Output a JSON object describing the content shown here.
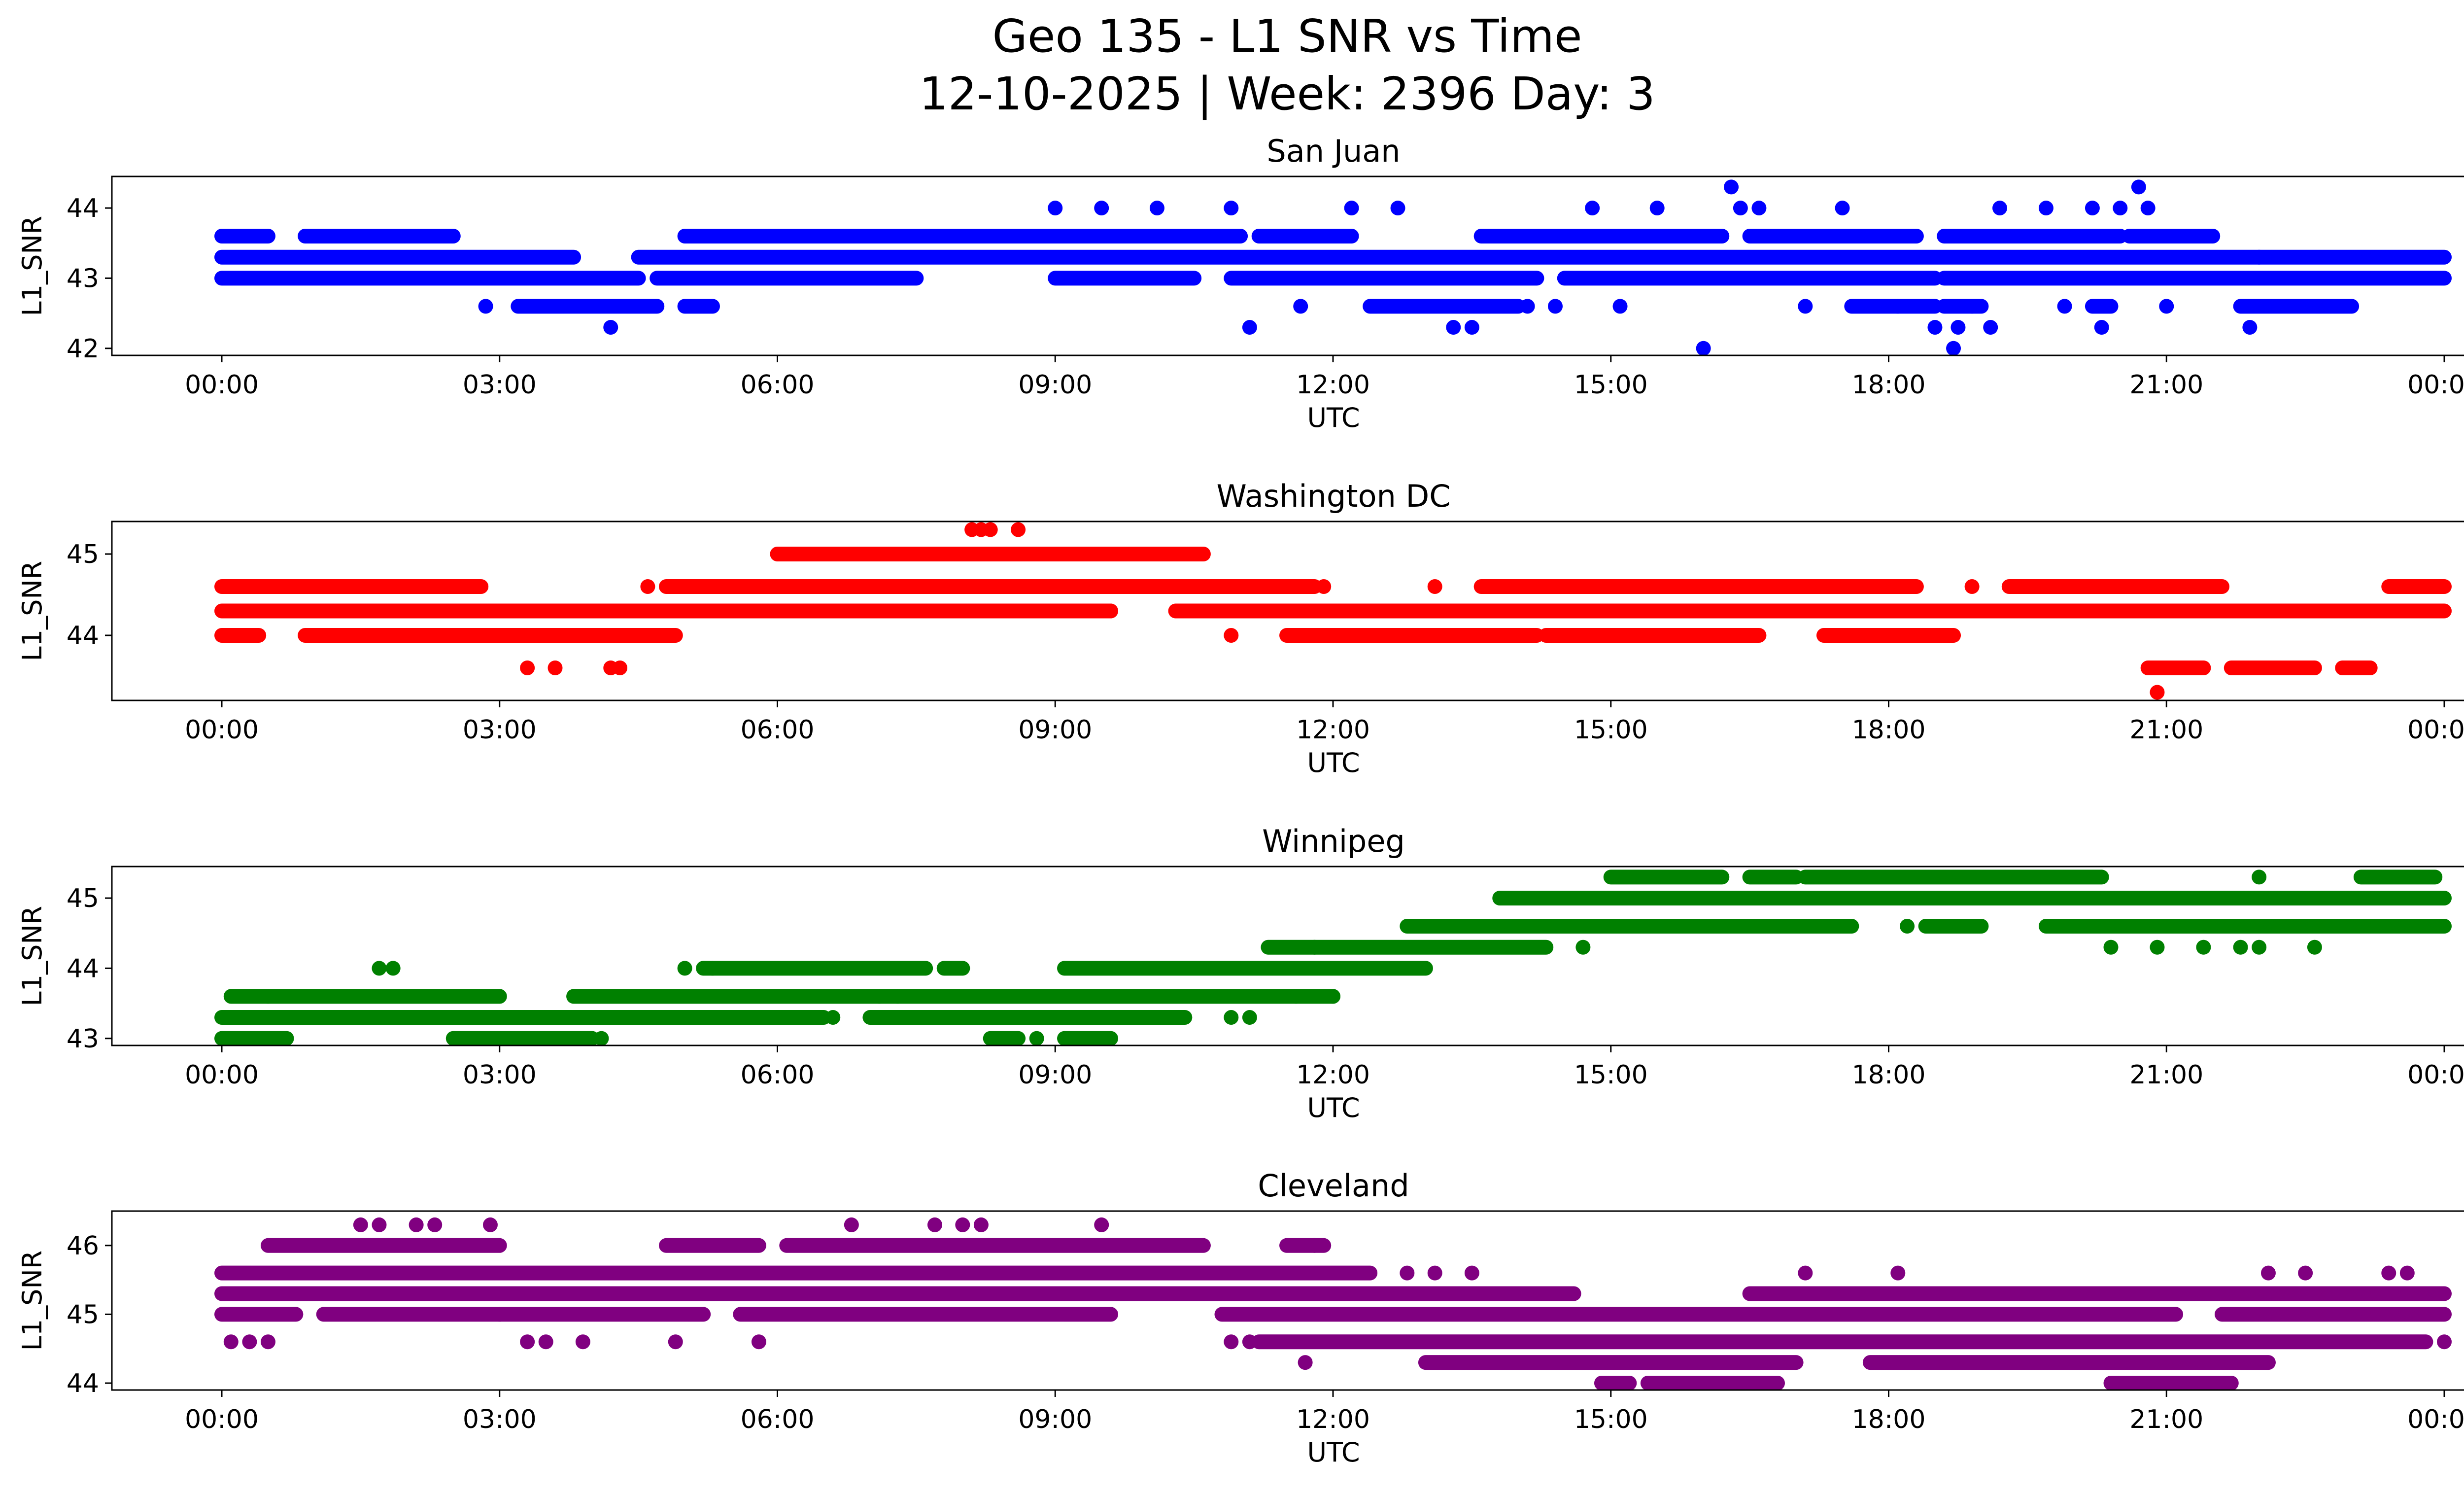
{
  "figure": {
    "title_line1": "Geo 135 - L1 SNR vs Time",
    "title_line2": "12-10-2025 | Week: 2396 Day: 3"
  },
  "chart_data": [
    {
      "type": "scatter",
      "title": "San Juan",
      "xlabel": "UTC",
      "ylabel": "L1_SNR",
      "color": "#0000ff",
      "xlim": [
        0,
        24
      ],
      "ylim": [
        41.9,
        44.45
      ],
      "x_ticks": [
        0,
        3,
        6,
        9,
        12,
        15,
        18,
        21,
        24
      ],
      "x_tick_labels": [
        "00:00",
        "03:00",
        "06:00",
        "09:00",
        "12:00",
        "15:00",
        "18:00",
        "21:00",
        "00:00"
      ],
      "y_ticks": [
        42,
        43,
        44
      ],
      "y_tick_labels": [
        "42",
        "43",
        "44"
      ],
      "bands": [
        {
          "y": 43.0,
          "segments": [
            [
              0,
              4.5
            ],
            [
              4.7,
              7.5
            ],
            [
              9.0,
              10.5
            ],
            [
              10.9,
              14.2
            ],
            [
              14.5,
              18.5
            ],
            [
              18.6,
              24
            ]
          ]
        },
        {
          "y": 43.3,
          "segments": [
            [
              0,
              3.8
            ],
            [
              4.5,
              24
            ]
          ]
        },
        {
          "y": 43.6,
          "segments": [
            [
              0,
              0.5
            ],
            [
              0.9,
              2.5
            ],
            [
              5.0,
              11.0
            ],
            [
              11.2,
              12.2
            ],
            [
              13.6,
              16.2
            ],
            [
              16.5,
              18.3
            ],
            [
              18.6,
              20.5
            ],
            [
              20.6,
              21.5
            ]
          ]
        },
        {
          "y": 42.6,
          "segments": [
            [
              3.2,
              4.7
            ],
            [
              5.0,
              5.3
            ],
            [
              12.4,
              14.0
            ],
            [
              17.6,
              18.5
            ],
            [
              18.6,
              19.0
            ],
            [
              20.2,
              20.4
            ],
            [
              21.8,
              23.0
            ]
          ]
        }
      ],
      "x": [
        2.85,
        4.2,
        9.0,
        9.5,
        10.1,
        10.9,
        11.1,
        11.65,
        12.2,
        12.7,
        13.3,
        13.5,
        14.1,
        14.4,
        14.8,
        15.1,
        15.5,
        16.0,
        16.3,
        16.4,
        16.6,
        17.1,
        17.5,
        18.1,
        18.5,
        18.7,
        18.75,
        18.9,
        19.1,
        19.2,
        19.7,
        19.9,
        20.2,
        20.3,
        20.5,
        20.7,
        20.8,
        21.0,
        21.9,
        22.0
      ],
      "y": [
        42.6,
        42.3,
        44.0,
        44.0,
        44.0,
        44.0,
        42.3,
        42.6,
        44.0,
        44.0,
        42.3,
        42.3,
        42.6,
        42.6,
        44.0,
        42.6,
        44.0,
        42.0,
        44.3,
        44.0,
        44.0,
        42.6,
        44.0,
        42.6,
        42.3,
        42.0,
        42.3,
        42.6,
        42.3,
        44.0,
        44.0,
        42.6,
        44.0,
        42.3,
        44.0,
        44.3,
        44.0,
        42.6,
        42.3,
        43.3
      ]
    },
    {
      "type": "scatter",
      "title": "Washington DC",
      "xlabel": "UTC",
      "ylabel": "L1_SNR",
      "color": "#ff0000",
      "xlim": [
        0,
        24
      ],
      "ylim": [
        43.2,
        45.4
      ],
      "x_ticks": [
        0,
        3,
        6,
        9,
        12,
        15,
        18,
        21,
        24
      ],
      "x_tick_labels": [
        "00:00",
        "03:00",
        "06:00",
        "09:00",
        "12:00",
        "15:00",
        "18:00",
        "21:00",
        "00:00"
      ],
      "y_ticks": [
        44,
        45
      ],
      "y_tick_labels": [
        "44",
        "45"
      ],
      "bands": [
        {
          "y": 44.3,
          "segments": [
            [
              0,
              6.2
            ],
            [
              6.2,
              9.6
            ],
            [
              10.3,
              24
            ]
          ]
        },
        {
          "y": 44.6,
          "segments": [
            [
              0,
              2.8
            ],
            [
              4.8,
              11.8
            ],
            [
              13.6,
              18.3
            ],
            [
              19.3,
              21.6
            ],
            [
              23.4,
              24
            ]
          ]
        },
        {
          "y": 44.0,
          "segments": [
            [
              0,
              0.4
            ],
            [
              0.9,
              1.6
            ],
            [
              1.6,
              4.9
            ],
            [
              11.5,
              14.2
            ],
            [
              14.3,
              16.6
            ],
            [
              17.3,
              18.7
            ]
          ]
        },
        {
          "y": 45.0,
          "segments": [
            [
              6.0,
              10.6
            ]
          ]
        },
        {
          "y": 43.6,
          "segments": [
            [
              20.8,
              21.4
            ],
            [
              21.7,
              22.6
            ],
            [
              22.9,
              23.2
            ]
          ]
        }
      ],
      "x": [
        3.3,
        3.6,
        4.2,
        4.3,
        4.6,
        6.9,
        8.1,
        8.2,
        8.3,
        8.6,
        8.25,
        8.7,
        8.9,
        9.6,
        10.9,
        11.9,
        13.1,
        18.9,
        20.9
      ],
      "y": [
        43.6,
        43.6,
        43.6,
        43.6,
        44.6,
        44.3,
        45.3,
        45.3,
        45.3,
        45.3,
        44.3,
        44.3,
        44.3,
        44.3,
        44.0,
        44.6,
        44.6,
        44.6,
        43.3
      ]
    },
    {
      "type": "scatter",
      "title": "Winnipeg",
      "xlabel": "UTC",
      "ylabel": "L1_SNR",
      "color": "#008000",
      "xlim": [
        0,
        24
      ],
      "ylim": [
        42.9,
        45.45
      ],
      "x_ticks": [
        0,
        3,
        6,
        9,
        12,
        15,
        18,
        21,
        24
      ],
      "x_tick_labels": [
        "00:00",
        "03:00",
        "06:00",
        "09:00",
        "12:00",
        "15:00",
        "18:00",
        "21:00",
        "00:00"
      ],
      "y_ticks": [
        43,
        44,
        45
      ],
      "y_tick_labels": [
        "43",
        "44",
        "45"
      ],
      "bands": [
        {
          "y": 43.3,
          "segments": [
            [
              0,
              4.0
            ],
            [
              4.0,
              6.5
            ],
            [
              7.0,
              10.4
            ]
          ]
        },
        {
          "y": 43.6,
          "segments": [
            [
              0.1,
              0.5
            ],
            [
              0.5,
              3.0
            ],
            [
              3.8,
              12.0
            ]
          ]
        },
        {
          "y": 43.0,
          "segments": [
            [
              0,
              0.7
            ],
            [
              2.5,
              4.0
            ],
            [
              8.3,
              8.6
            ],
            [
              9.1,
              9.6
            ]
          ]
        },
        {
          "y": 44.0,
          "segments": [
            [
              5.2,
              7.6
            ],
            [
              7.8,
              8.0
            ],
            [
              9.1,
              13.0
            ]
          ]
        },
        {
          "y": 44.3,
          "segments": [
            [
              11.3,
              14.3
            ]
          ]
        },
        {
          "y": 44.6,
          "segments": [
            [
              12.8,
              17.6
            ],
            [
              18.4,
              19.0
            ],
            [
              19.7,
              24
            ]
          ]
        },
        {
          "y": 45.0,
          "segments": [
            [
              13.8,
              24
            ]
          ]
        },
        {
          "y": 45.3,
          "segments": [
            [
              15.0,
              16.2
            ],
            [
              16.5,
              17.0
            ],
            [
              17.1,
              20.3
            ],
            [
              23.1,
              23.9
            ]
          ]
        }
      ],
      "x": [
        1.7,
        1.85,
        4.1,
        5.0,
        5.3,
        6.6,
        7.1,
        7.3,
        8.8,
        10.9,
        11.1,
        11.6,
        11.8,
        12.0,
        14.7,
        18.2,
        20.4,
        20.9,
        21.4,
        21.8,
        22.0,
        22.6,
        22.0
      ],
      "y": [
        44.0,
        44.0,
        43.0,
        44.0,
        44.0,
        43.3,
        43.6,
        43.6,
        43.0,
        43.3,
        43.3,
        43.6,
        44.3,
        43.6,
        44.3,
        44.6,
        44.3,
        44.3,
        44.3,
        44.3,
        44.3,
        44.3,
        45.3
      ]
    },
    {
      "type": "scatter",
      "title": "Cleveland",
      "xlabel": "UTC",
      "ylabel": "L1_SNR",
      "color": "#800080",
      "xlim": [
        0,
        24
      ],
      "ylim": [
        43.9,
        46.5
      ],
      "x_ticks": [
        0,
        3,
        6,
        9,
        12,
        15,
        18,
        21,
        24
      ],
      "x_tick_labels": [
        "00:00",
        "03:00",
        "06:00",
        "09:00",
        "12:00",
        "15:00",
        "18:00",
        "21:00",
        "00:00"
      ],
      "y_ticks": [
        44,
        45,
        46
      ],
      "y_tick_labels": [
        "44",
        "45",
        "46"
      ],
      "bands": [
        {
          "y": 45.6,
          "segments": [
            [
              0,
              12.4
            ]
          ]
        },
        {
          "y": 45.3,
          "segments": [
            [
              0,
              13.2
            ],
            [
              13.2,
              14.6
            ],
            [
              16.5,
              24
            ]
          ]
        },
        {
          "y": 45.0,
          "segments": [
            [
              0,
              0.8
            ],
            [
              1.1,
              3.0
            ],
            [
              3.0,
              5.2
            ],
            [
              5.6,
              9.6
            ],
            [
              10.8,
              21.1
            ],
            [
              21.6,
              24
            ]
          ]
        },
        {
          "y": 46.0,
          "segments": [
            [
              0.5,
              3.0
            ],
            [
              4.8,
              5.8
            ],
            [
              6.1,
              10.6
            ],
            [
              11.5,
              11.9
            ]
          ]
        },
        {
          "y": 44.6,
          "segments": [
            [
              11.2,
              23.8
            ]
          ]
        },
        {
          "y": 44.3,
          "segments": [
            [
              13.0,
              17.0
            ],
            [
              17.8,
              22.1
            ]
          ]
        },
        {
          "y": 44.0,
          "segments": [
            [
              14.9,
              15.2
            ],
            [
              15.4,
              16.8
            ],
            [
              20.4,
              21.4
            ],
            [
              21.0,
              21.7
            ]
          ]
        }
      ],
      "x": [
        0.1,
        0.3,
        0.5,
        1.5,
        1.7,
        2.1,
        2.3,
        2.9,
        3.3,
        3.5,
        3.9,
        4.9,
        5.8,
        6.8,
        7.7,
        8.0,
        8.2,
        9.5,
        10.9,
        11.1,
        11.7,
        11.8,
        12.8,
        13.1,
        13.5,
        17.1,
        18.1,
        22.1,
        22.5,
        23.4,
        23.6,
        24.0
      ],
      "y": [
        44.6,
        44.6,
        44.6,
        46.3,
        46.3,
        46.3,
        46.3,
        46.3,
        44.6,
        44.6,
        44.6,
        44.6,
        44.6,
        46.3,
        46.3,
        46.3,
        46.3,
        46.3,
        44.6,
        44.6,
        44.3,
        46.0,
        45.6,
        45.6,
        45.6,
        45.6,
        45.6,
        45.6,
        45.6,
        45.6,
        45.6,
        44.6
      ]
    }
  ]
}
